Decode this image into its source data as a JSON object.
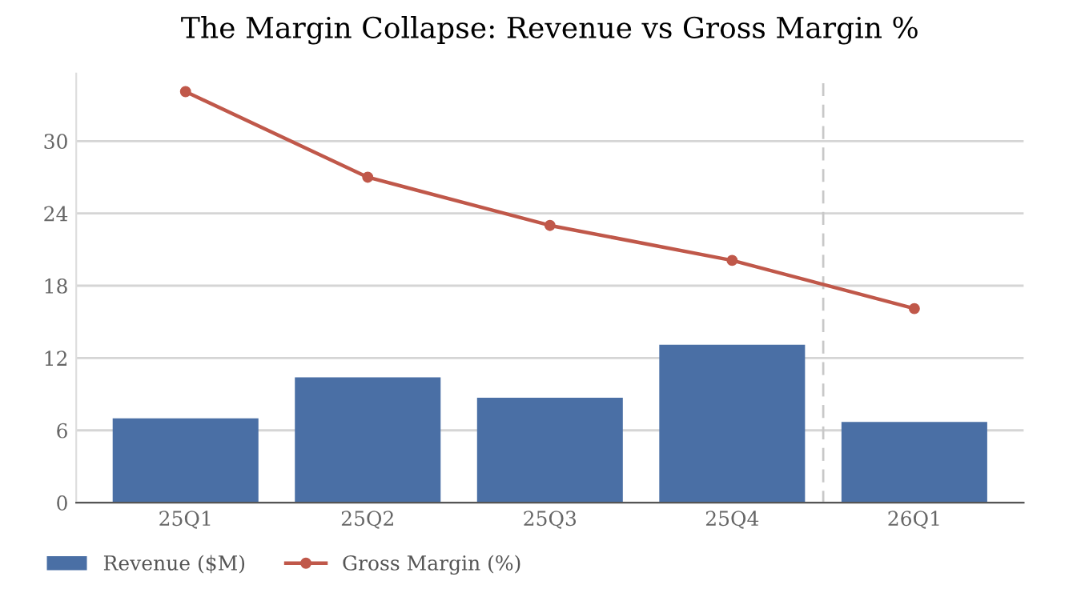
{
  "chart_data": {
    "type": "bar",
    "title": "The Margin Collapse: Revenue vs Gross Margin %",
    "categories": [
      "25Q1",
      "25Q2",
      "25Q3",
      "25Q4",
      "26Q1"
    ],
    "series": [
      {
        "name": "Revenue ($M)",
        "color": "#4a6fa5",
        "values": [
          7.0,
          10.4,
          8.7,
          13.1,
          6.7
        ]
      },
      {
        "name": "Gross Margin (%)",
        "type": "line",
        "color": "#c0584a",
        "marker": "circle",
        "line_style": "solid",
        "values": [
          34.1,
          27.0,
          23.0,
          20.1,
          16.1
        ]
      }
    ],
    "ylim": [
      0,
      35.6
    ],
    "yticks": [
      0,
      6,
      12,
      18,
      24,
      30
    ],
    "grid": "y",
    "legend": "bottom left"
  }
}
